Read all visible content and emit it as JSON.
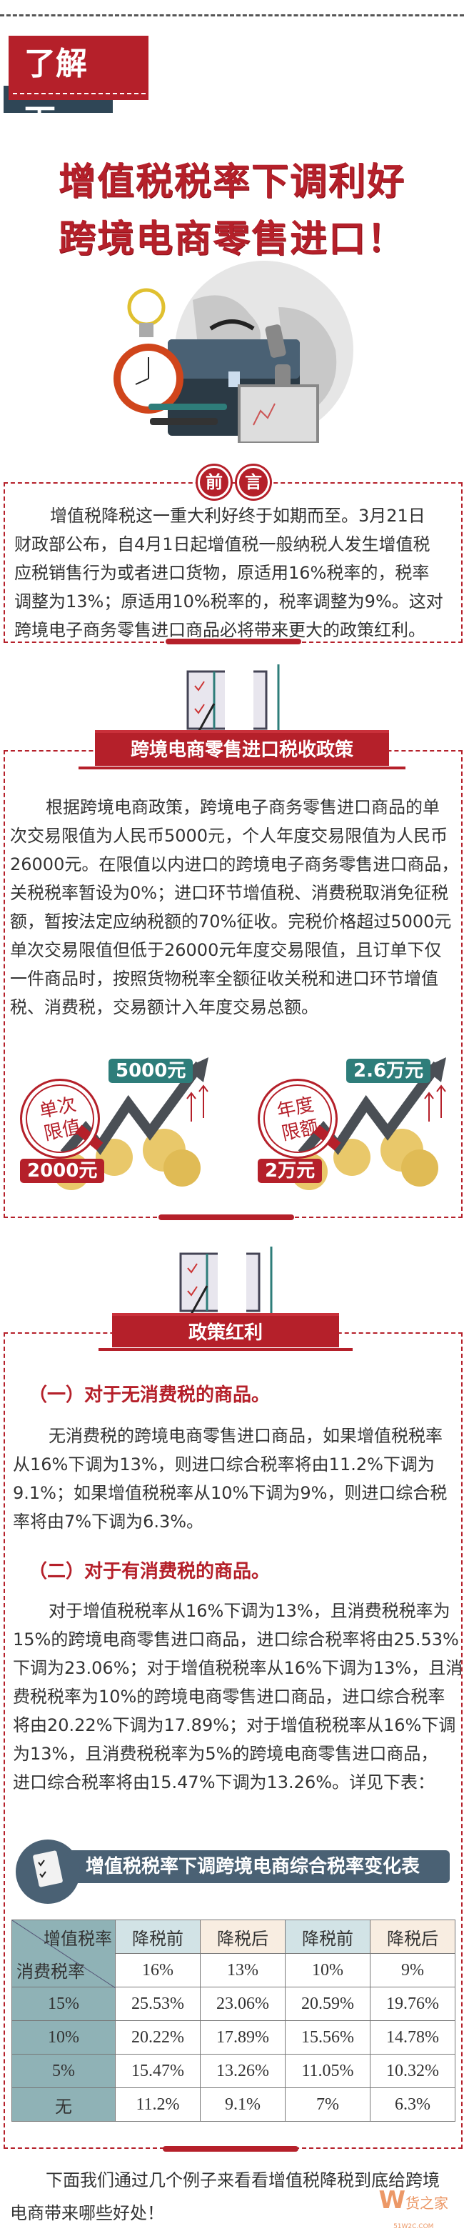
{
  "header": {
    "tag": "了解下，",
    "title_lines": [
      "增值税税率下调利好",
      "跨境电商零售进口！"
    ]
  },
  "preface": {
    "seal_chars": [
      "前",
      "言"
    ],
    "lines": [
      "增值税降税这一重大利好终于如期而至。3月21日",
      "财政部公布，自4月1日起增值税一般纳税人发生增值税",
      "应税销售行为或者进口货物，原适用16%税率的，税率",
      "调整为13%；原适用10%税率的，税率调整为9%。这对",
      "跨境电子商务零售进口商品必将带来更大的政策红利。"
    ]
  },
  "policy": {
    "banner": "跨境电商零售进口税收政策",
    "lines": [
      "根据跨境电商政策，跨境电子商务零售进口商品的单",
      "次交易限值为人民币5000元，个人年度交易限值为人民币",
      "26000元。在限值以内进口的跨境电子商务零售进口商品，",
      "关税税率暂设为0%；进口环节增值税、消费税取消免征税",
      "额，暂按法定应纳税额的70%征收。完税价格超过5000元",
      "单次交易限值但低于26000元年度交易限值，且订单下仅",
      "一件商品时，按照货物税率全额征收关税和进口环节增值",
      "税、消费税，交易额计入年度交易总额。"
    ],
    "graphics": [
      {
        "stamp": [
          "单次",
          "限值"
        ],
        "high": "5000元",
        "low": "2000元"
      },
      {
        "stamp": [
          "年度",
          "限额"
        ],
        "high": "2.6万元",
        "low": "2万元"
      }
    ]
  },
  "benefit": {
    "banner": "政策红利",
    "section1": {
      "heading": "（一）对于无消费税的商品。",
      "lines": [
        "无消费税的跨境电商零售进口商品，如果增值税税率",
        "从16%下调为13%，则进口综合税率将由11.2%下调为",
        "9.1%；如果增值税税率从10%下调为9%，则进口综合税",
        "率将由7%下调为6.3%。"
      ]
    },
    "section2": {
      "heading": "（二）对于有消费税的商品。",
      "lines": [
        "对于增值税税率从16%下调为13%，且消费税税率为",
        "15%的跨境电商零售进口商品，进口综合税率将由25.53%",
        "下调为23.06%；对于增值税税率从16%下调为13%，且消",
        "费税税率为10%的跨境电商零售进口商品，进口综合税率",
        "将由20.22%下调为17.89%；对于增值税税率从16%下调",
        "为13%，且消费税税率为5%的跨境电商零售进口商品，",
        "进口综合税率将由15.47%下调为13.26%。详见下表："
      ]
    },
    "table": {
      "title": "增值税税率下调跨境电商综合税率变化表",
      "corner_top": "增值税率",
      "corner_bottom": "消费税率",
      "headers": [
        "降税前",
        "降税后",
        "降税前",
        "降税后"
      ],
      "vat_rates": [
        "16%",
        "13%",
        "10%",
        "9%"
      ],
      "rows": [
        {
          "label": "15%",
          "values": [
            "25.53%",
            "23.06%",
            "20.59%",
            "19.76%"
          ]
        },
        {
          "label": "10%",
          "values": [
            "20.22%",
            "17.89%",
            "15.56%",
            "14.78%"
          ]
        },
        {
          "label": "5%",
          "values": [
            "15.47%",
            "13.26%",
            "11.05%",
            "10.32%"
          ]
        },
        {
          "label": "无",
          "values": [
            "11.2%",
            "9.1%",
            "7%",
            "6.3%"
          ]
        }
      ]
    }
  },
  "closing": {
    "lines": [
      "下面我们通过几个例子来看看增值税降税到底给跨境",
      "电商带来哪些好处！"
    ]
  },
  "watermark": {
    "name": "货之家",
    "site": "51W2C.COM"
  },
  "colors": {
    "brand_red": "#b5202a",
    "slate": "#4a6174",
    "teal": "#2e7d7a",
    "table_teal": "#8fb2b6"
  }
}
